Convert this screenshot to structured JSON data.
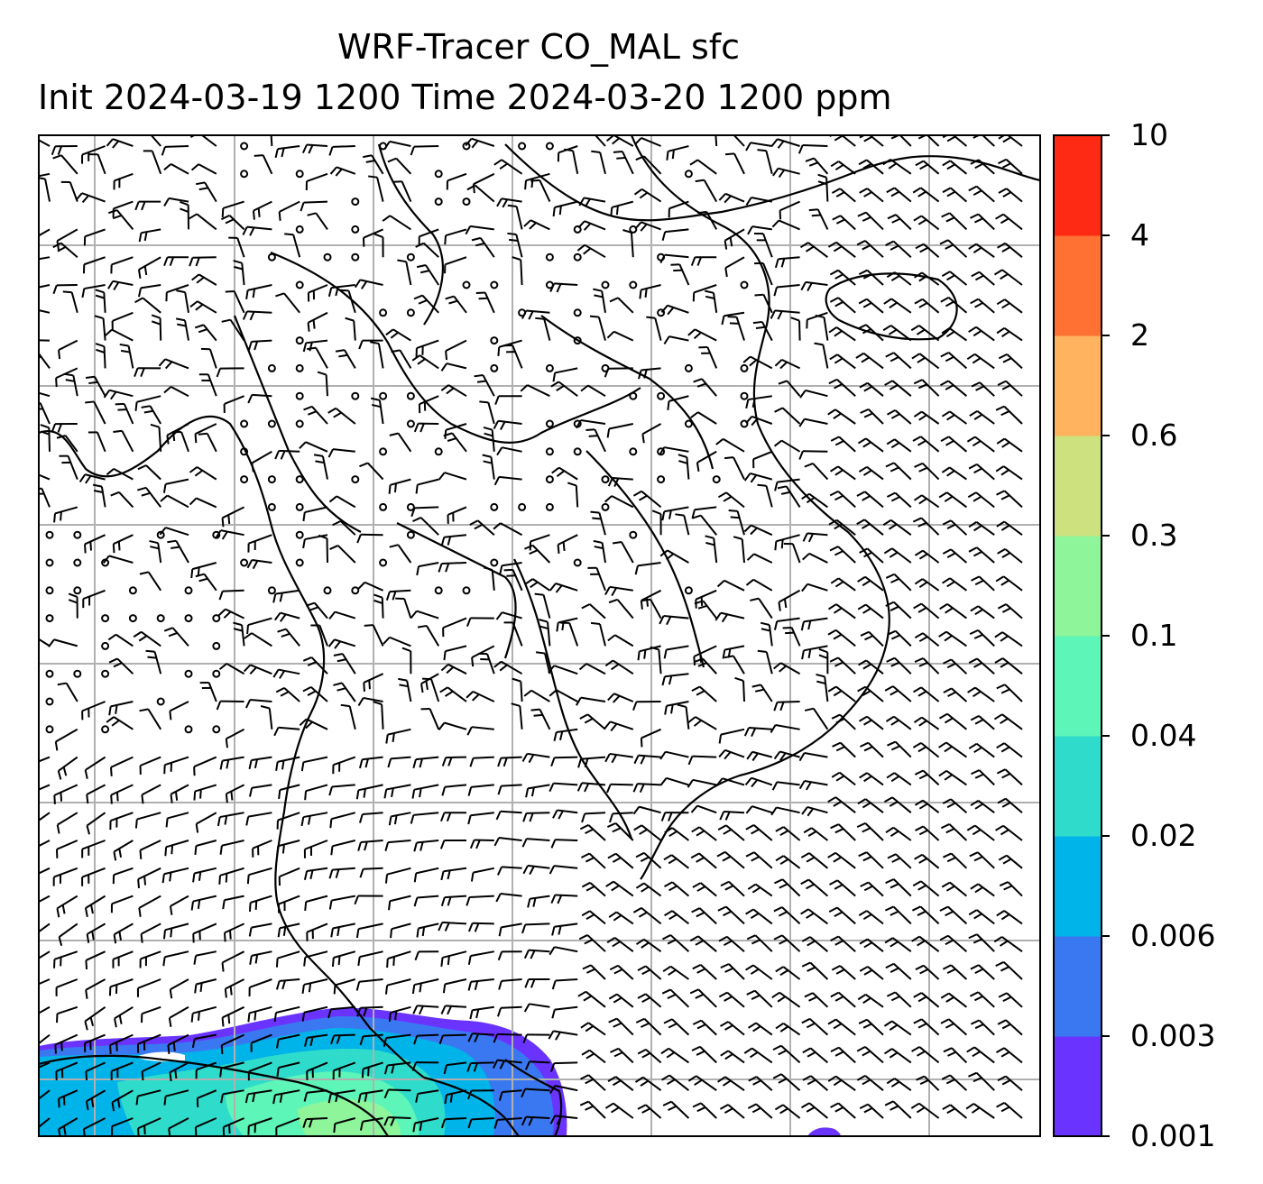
{
  "title": {
    "line1": "WRF-Tracer CO_MAL sfc",
    "line2": "Init 2024-03-19 1200 Time 2024-03-20 1200 ppm"
  },
  "colorbar": {
    "levels": [
      "0.001",
      "0.003",
      "0.006",
      "0.02",
      "0.04",
      "0.1",
      "0.3",
      "0.6",
      "2",
      "4",
      "10"
    ],
    "colors": [
      "#6a33ff",
      "#3a78f2",
      "#00b3e8",
      "#2fdccc",
      "#5ef5b8",
      "#8ef59a",
      "#cde17f",
      "#ffb35e",
      "#ff7033",
      "#ff2a14"
    ]
  },
  "map": {
    "gridline_color": "#b0b0b0",
    "field_colors": {
      "low": "#6a33ff",
      "mid": "#00b3e8",
      "high": "#5ef5b8"
    }
  }
}
